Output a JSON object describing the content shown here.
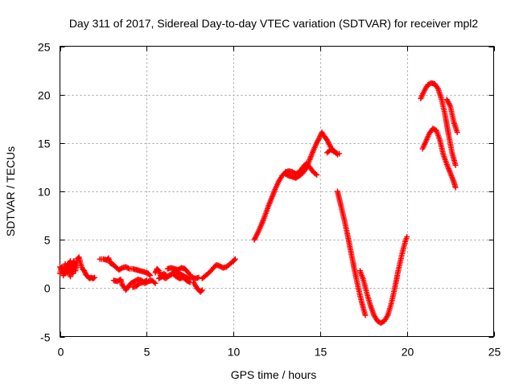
{
  "chart_data": {
    "type": "scatter",
    "title": "Day 311 of 2017, Sidereal Day-to-day VTEC variation (SDTVAR) for receiver mpl2",
    "xlabel": "GPS time / hours",
    "ylabel": "SDTVAR / TECUs",
    "xlim": [
      0,
      25
    ],
    "ylim": [
      -5,
      25
    ],
    "xticks": [
      0,
      5,
      10,
      15,
      20,
      25
    ],
    "yticks": [
      -5,
      0,
      5,
      10,
      15,
      20,
      25
    ],
    "xtick_labels": [
      "0",
      "5",
      "10",
      "15",
      "20",
      "25"
    ],
    "ytick_labels": [
      "-5",
      "0",
      "5",
      "10",
      "15",
      "20",
      "25"
    ],
    "grid": true,
    "legend": "none",
    "series": [
      {
        "name": "SDTVAR",
        "color": "#ff0000",
        "marker": "plus",
        "segments": [
          [
            [
              0.0,
              1.5
            ],
            [
              0.1,
              2.2
            ],
            [
              0.2,
              1.3
            ],
            [
              0.3,
              2.5
            ],
            [
              0.4,
              1.6
            ],
            [
              0.5,
              2.0
            ],
            [
              0.6,
              1.2
            ],
            [
              0.7,
              2.4
            ],
            [
              0.8,
              2.8
            ],
            [
              0.9,
              1.8
            ],
            [
              1.0,
              3.0
            ],
            [
              1.1,
              3.2
            ],
            [
              1.2,
              2.5
            ],
            [
              1.3,
              2.0
            ],
            [
              1.4,
              1.8
            ],
            [
              1.5,
              1.4
            ],
            [
              1.6,
              1.2
            ],
            [
              1.7,
              1.0
            ],
            [
              1.8,
              1.1
            ],
            [
              1.9,
              1.0
            ],
            [
              2.0,
              1.1
            ]
          ],
          [
            [
              0.0,
              2.2
            ],
            [
              0.15,
              1.8
            ],
            [
              0.3,
              1.5
            ],
            [
              0.45,
              2.4
            ],
            [
              0.6,
              2.8
            ],
            [
              0.75,
              1.5
            ],
            [
              0.9,
              2.6
            ]
          ],
          [
            [
              2.3,
              3.0
            ],
            [
              2.5,
              3.0
            ],
            [
              2.7,
              2.9
            ],
            [
              2.8,
              3.1
            ],
            [
              2.9,
              2.6
            ],
            [
              3.0,
              2.5
            ],
            [
              3.1,
              2.4
            ],
            [
              3.2,
              2.2
            ],
            [
              3.4,
              1.9
            ],
            [
              3.6,
              2.1
            ],
            [
              3.8,
              2.2
            ],
            [
              4.0,
              2.0
            ],
            [
              4.2,
              2.0
            ],
            [
              4.4,
              1.9
            ],
            [
              4.6,
              1.8
            ],
            [
              4.8,
              1.7
            ],
            [
              5.0,
              1.6
            ],
            [
              5.1,
              1.5
            ],
            [
              5.2,
              1.3
            ]
          ],
          [
            [
              3.1,
              0.8
            ],
            [
              3.3,
              0.7
            ],
            [
              3.5,
              0.9
            ],
            [
              3.6,
              0.3
            ],
            [
              3.7,
              0.1
            ],
            [
              3.8,
              -0.2
            ],
            [
              4.0,
              0.3
            ],
            [
              4.1,
              0.5
            ],
            [
              4.3,
              0.7
            ],
            [
              4.5,
              0.9
            ],
            [
              4.7,
              0.8
            ],
            [
              4.9,
              0.5
            ],
            [
              5.1,
              0.7
            ],
            [
              5.3,
              0.8
            ],
            [
              5.5,
              0.5
            ]
          ],
          [
            [
              4.2,
              0.1
            ],
            [
              4.4,
              0.2
            ],
            [
              4.6,
              0.5
            ],
            [
              4.8,
              0.6
            ],
            [
              5.0,
              0.8
            ]
          ],
          [
            [
              5.5,
              1.6
            ],
            [
              5.6,
              2.0
            ],
            [
              5.7,
              1.8
            ],
            [
              5.8,
              1.3
            ],
            [
              6.0,
              1.5
            ],
            [
              6.2,
              1.2
            ],
            [
              6.4,
              1.4
            ],
            [
              6.6,
              1.8
            ],
            [
              6.8,
              1.6
            ],
            [
              7.0,
              1.4
            ],
            [
              7.2,
              1.2
            ],
            [
              7.4,
              1.0
            ],
            [
              7.6,
              1.1
            ],
            [
              7.8,
              1.0
            ],
            [
              8.0,
              1.1
            ]
          ],
          [
            [
              5.7,
              1.0
            ],
            [
              5.9,
              1.2
            ],
            [
              6.1,
              1.0
            ],
            [
              6.3,
              1.3
            ],
            [
              6.5,
              1.5
            ],
            [
              6.7,
              1.2
            ],
            [
              6.9,
              1.0
            ],
            [
              7.1,
              1.1
            ],
            [
              7.3,
              0.8
            ],
            [
              7.5,
              0.6
            ]
          ],
          [
            [
              6.2,
              2.0
            ],
            [
              6.4,
              2.1
            ],
            [
              6.6,
              2.0
            ],
            [
              6.8,
              1.9
            ],
            [
              7.0,
              2.1
            ],
            [
              7.2,
              2.0
            ],
            [
              7.3,
              1.8
            ],
            [
              7.5,
              1.4
            ]
          ],
          [
            [
              7.7,
              0.6
            ],
            [
              7.8,
              0.3
            ],
            [
              7.9,
              0.0
            ],
            [
              8.0,
              -0.2
            ],
            [
              8.1,
              -0.4
            ],
            [
              8.2,
              -0.2
            ]
          ],
          [
            [
              8.2,
              1.0
            ],
            [
              8.4,
              1.3
            ],
            [
              8.6,
              1.6
            ],
            [
              8.8,
              2.0
            ],
            [
              9.0,
              2.4
            ],
            [
              9.2,
              2.3
            ],
            [
              9.4,
              2.1
            ],
            [
              9.6,
              2.2
            ],
            [
              9.8,
              2.5
            ],
            [
              10.0,
              2.8
            ],
            [
              10.1,
              3.0
            ]
          ],
          [
            [
              11.2,
              5.0
            ],
            [
              11.4,
              5.7
            ],
            [
              11.6,
              6.5
            ],
            [
              11.8,
              7.4
            ],
            [
              12.0,
              8.4
            ],
            [
              12.2,
              9.3
            ],
            [
              12.4,
              10.2
            ],
            [
              12.6,
              11.0
            ],
            [
              12.8,
              11.6
            ],
            [
              13.0,
              12.0
            ],
            [
              13.2,
              12.1
            ],
            [
              13.4,
              12.0
            ],
            [
              13.6,
              11.8
            ],
            [
              13.8,
              12.0
            ],
            [
              14.0,
              12.5
            ],
            [
              14.2,
              12.9
            ],
            [
              14.4,
              12.5
            ],
            [
              14.6,
              12.0
            ],
            [
              14.8,
              11.7
            ]
          ],
          [
            [
              13.0,
              11.8
            ],
            [
              13.2,
              11.6
            ],
            [
              13.4,
              11.5
            ],
            [
              13.6,
              11.4
            ],
            [
              13.8,
              11.6
            ],
            [
              14.0,
              11.9
            ],
            [
              14.2,
              12.4
            ],
            [
              14.4,
              13.3
            ],
            [
              14.6,
              14.2
            ],
            [
              14.8,
              15.0
            ],
            [
              15.0,
              15.7
            ],
            [
              15.1,
              16.1
            ],
            [
              15.2,
              15.8
            ],
            [
              15.4,
              15.3
            ],
            [
              15.6,
              14.6
            ],
            [
              15.8,
              14.1
            ],
            [
              16.0,
              13.9
            ],
            [
              16.1,
              13.9
            ]
          ],
          [
            [
              15.4,
              14.0
            ],
            [
              15.6,
              14.3
            ],
            [
              15.8,
              14.2
            ],
            [
              16.0,
              13.8
            ]
          ],
          [
            [
              16.0,
              10.0
            ],
            [
              16.2,
              8.5
            ],
            [
              16.4,
              7.0
            ],
            [
              16.6,
              5.3
            ],
            [
              16.8,
              3.5
            ],
            [
              17.0,
              1.7
            ],
            [
              17.2,
              0.0
            ],
            [
              17.4,
              -1.5
            ],
            [
              17.6,
              -2.8
            ]
          ],
          [
            [
              17.3,
              1.8
            ],
            [
              17.5,
              0.8
            ],
            [
              17.7,
              -0.6
            ],
            [
              17.9,
              -1.8
            ],
            [
              18.1,
              -2.8
            ],
            [
              18.3,
              -3.4
            ],
            [
              18.5,
              -3.6
            ],
            [
              18.7,
              -3.4
            ],
            [
              18.9,
              -2.8
            ],
            [
              19.1,
              -1.6
            ],
            [
              19.3,
              0.0
            ],
            [
              19.5,
              1.8
            ],
            [
              19.7,
              3.4
            ],
            [
              19.9,
              4.8
            ],
            [
              20.0,
              5.3
            ]
          ],
          [
            [
              20.8,
              19.6
            ],
            [
              21.0,
              20.4
            ],
            [
              21.2,
              21.0
            ],
            [
              21.4,
              21.2
            ],
            [
              21.6,
              21.1
            ],
            [
              21.8,
              20.6
            ],
            [
              22.0,
              19.5
            ],
            [
              22.2,
              17.9
            ],
            [
              22.4,
              15.9
            ],
            [
              22.6,
              14.0
            ],
            [
              22.8,
              12.7
            ]
          ],
          [
            [
              20.9,
              14.4
            ],
            [
              21.1,
              15.2
            ],
            [
              21.3,
              16.0
            ],
            [
              21.5,
              16.5
            ],
            [
              21.7,
              16.3
            ],
            [
              21.9,
              15.3
            ],
            [
              22.1,
              13.8
            ],
            [
              22.3,
              12.8
            ],
            [
              22.5,
              11.9
            ],
            [
              22.7,
              11.0
            ],
            [
              22.8,
              10.4
            ]
          ],
          [
            [
              22.3,
              19.5
            ],
            [
              22.5,
              18.8
            ],
            [
              22.7,
              17.2
            ],
            [
              22.9,
              16.1
            ]
          ]
        ]
      }
    ]
  }
}
